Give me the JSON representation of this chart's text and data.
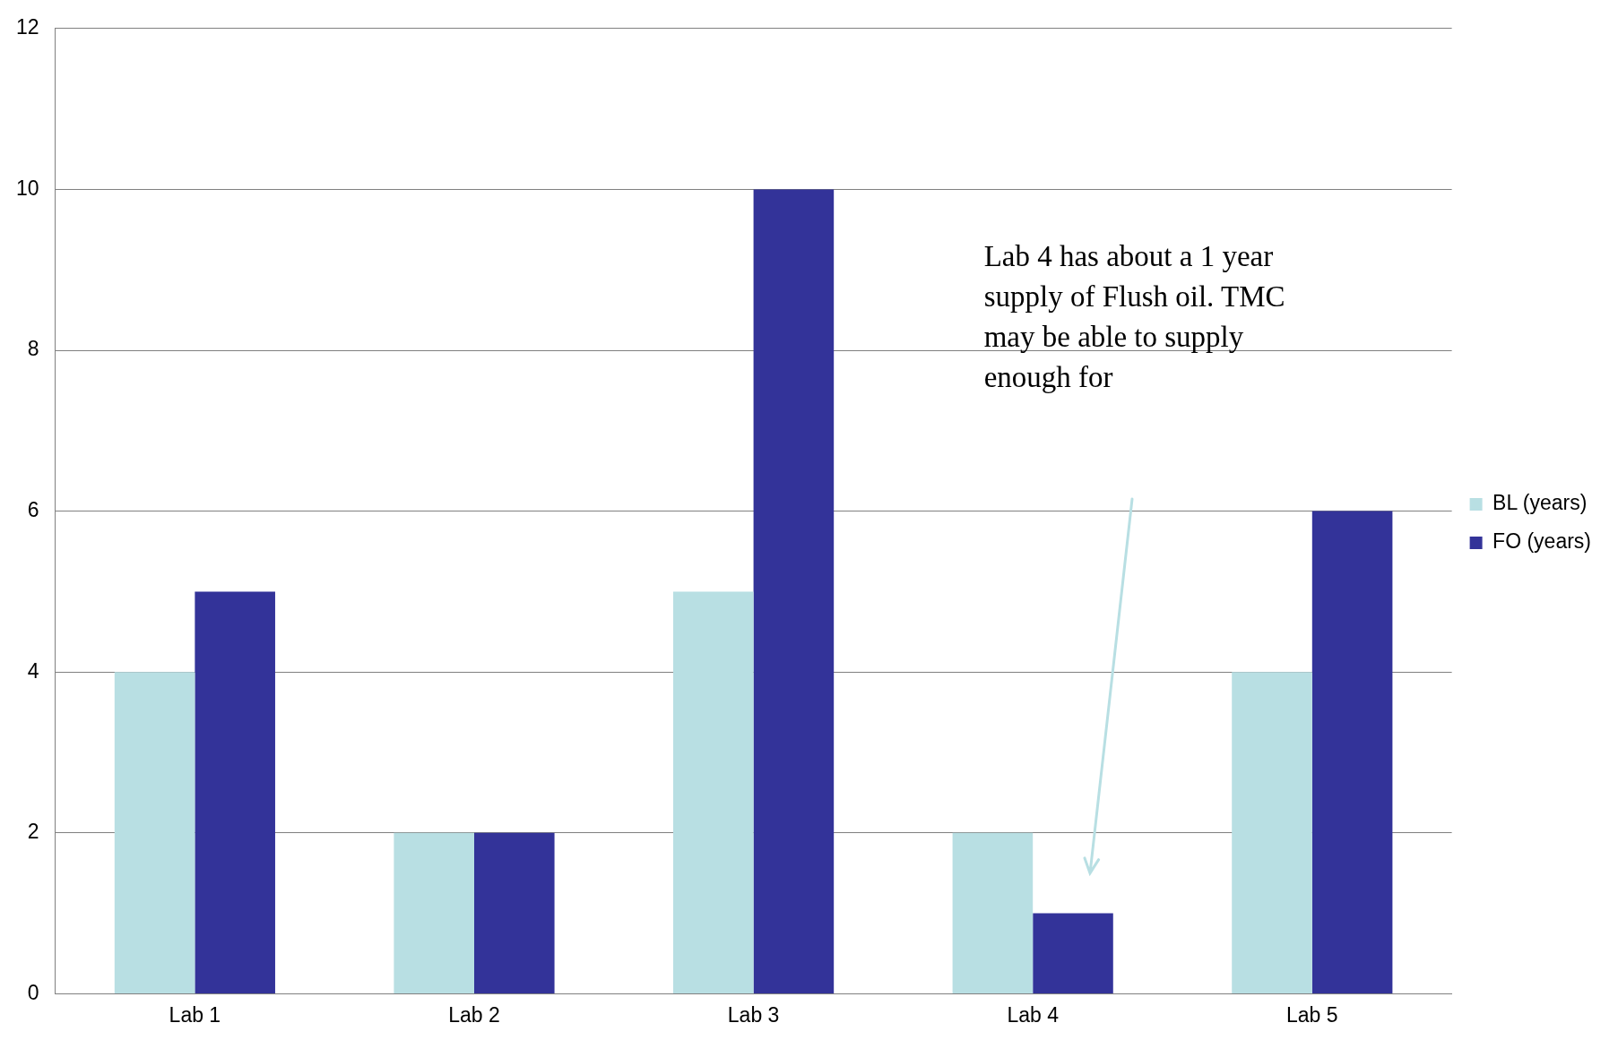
{
  "chart_data": {
    "type": "bar",
    "categories": [
      "Lab 1",
      "Lab 2",
      "Lab 3",
      "Lab 4",
      "Lab 5"
    ],
    "series": [
      {
        "name": "BL (years)",
        "color": "#b8dfe3",
        "values": [
          4,
          2,
          5,
          2,
          4
        ]
      },
      {
        "name": "FO (years)",
        "color": "#333399",
        "values": [
          5,
          2,
          10,
          1,
          6
        ]
      }
    ],
    "ylim": [
      0,
      12
    ],
    "yticks": [
      0,
      2,
      4,
      6,
      8,
      10,
      12
    ],
    "grid": "y",
    "legend": "right",
    "annotations": [
      "Lab 4 has about a 1 year supply of Flush oil. TMC may be able to supply enough for"
    ]
  }
}
